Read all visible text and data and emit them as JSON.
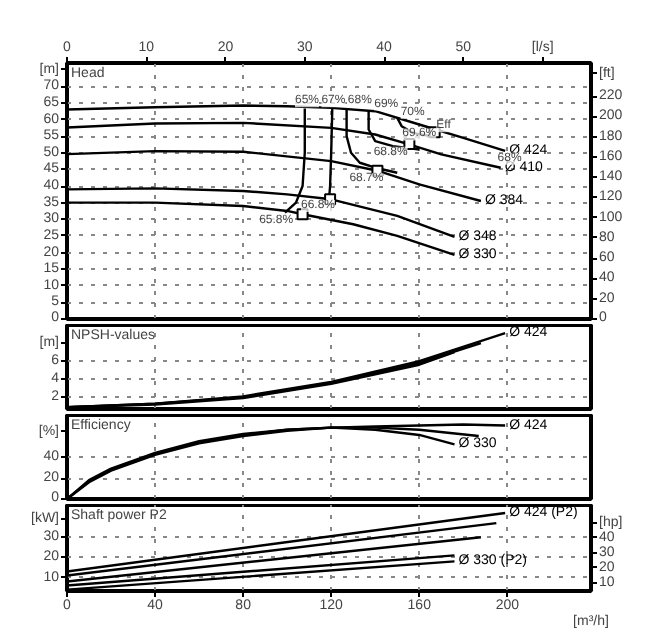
{
  "chart_data": [
    {
      "type": "line",
      "title": "Head",
      "xlim": [
        0,
        238
      ],
      "xticks": [
        0,
        40,
        80,
        120,
        160,
        200
      ],
      "x2lim": [
        0,
        66.1
      ],
      "x2ticks": [
        0,
        10,
        20,
        30,
        40,
        50,
        {
          "value": 60,
          "label": "[l/s]"
        }
      ],
      "ylim": [
        0,
        77
      ],
      "yticks": [
        0,
        5,
        10,
        15,
        20,
        25,
        30,
        35,
        40,
        45,
        50,
        55,
        60,
        65,
        70,
        {
          "value": 75,
          "label": "[m]"
        }
      ],
      "y2lim": [
        0,
        252.6
      ],
      "y2ticks": [
        0,
        20,
        40,
        60,
        80,
        100,
        120,
        140,
        160,
        180,
        200,
        220,
        {
          "value": 242,
          "label": "[ft]"
        }
      ],
      "grid": true,
      "tick_labels": "y",
      "series": [
        {
          "name": "Ø 424",
          "color": "#000000",
          "x": [
            0,
            40,
            80,
            100,
            120,
            140,
            160,
            180,
            199
          ],
          "values": [
            63,
            63.7,
            64.2,
            64,
            63.5,
            62.5,
            58.5,
            54.5,
            50.6
          ]
        },
        {
          "name": "Ø 410",
          "color": "#000000",
          "x": [
            0,
            40,
            80,
            120,
            140,
            155,
            170,
            197
          ],
          "values": [
            57.6,
            58.8,
            59,
            57.5,
            55.5,
            52.6,
            49.5,
            45.5
          ]
        },
        {
          "name": "Ø 384",
          "color": "#000000",
          "x": [
            0,
            40,
            80,
            120,
            141,
            160,
            188
          ],
          "values": [
            49.6,
            50.5,
            50.3,
            47.5,
            44.6,
            40.5,
            35.5
          ]
        },
        {
          "name": "Ø 348",
          "color": "#000000",
          "x": [
            0,
            40,
            80,
            100,
            120,
            150,
            176
          ],
          "values": [
            39,
            39.3,
            38.5,
            37.5,
            36,
            31,
            24.7
          ]
        },
        {
          "name": "Ø 330",
          "color": "#000000",
          "x": [
            0,
            40,
            80,
            100,
            107,
            130,
            150,
            176
          ],
          "values": [
            35,
            35,
            34,
            32.5,
            31.5,
            28.5,
            25,
            19.3
          ]
        },
        {
          "color": "#000000",
          "x": [
            108,
            108,
            107,
            104,
            99
          ],
          "values": [
            63.3,
            50,
            40,
            35,
            32
          ]
        },
        {
          "color": "#000000",
          "x": [
            120.5,
            120,
            119.5,
            119
          ],
          "values": [
            63.5,
            50,
            40,
            36
          ]
        },
        {
          "color": "#000000",
          "x": [
            127,
            127,
            129,
            133,
            140,
            150
          ],
          "values": [
            63.5,
            55,
            50,
            47,
            45.5,
            44
          ]
        },
        {
          "color": "#000000",
          "x": [
            137,
            137,
            140,
            148,
            160
          ],
          "values": [
            62.5,
            57,
            53.5,
            52,
            51
          ]
        },
        {
          "color": "#000000",
          "x": [
            150,
            152,
            157,
            165
          ],
          "values": [
            60.5,
            58,
            56,
            55
          ]
        },
        {
          "type": "scatter",
          "marker": "square",
          "color": "#000000",
          "x": [
            167,
            155.5,
            141,
            119.5,
            107
          ],
          "values": [
            56.2,
            52.6,
            44.6,
            36,
            31.5
          ]
        }
      ],
      "annotations": [
        {
          "text": "65%",
          "x": 109,
          "y": 65.5
        },
        {
          "text": "67%",
          "x": 121,
          "y": 65.5
        },
        {
          "text": "68%",
          "x": 133,
          "y": 65.5
        },
        {
          "text": "69%",
          "x": 145,
          "y": 64.5
        },
        {
          "text": "70%",
          "x": 157,
          "y": 62
        },
        {
          "text": "Eff",
          "x": 171,
          "y": 58
        },
        {
          "text": "69.6%",
          "x": 160,
          "y": 55.5
        },
        {
          "text": "68.8%",
          "x": 147,
          "y": 50
        },
        {
          "text": "68.7%",
          "x": 136,
          "y": 42
        },
        {
          "text": "66.8%",
          "x": 114,
          "y": 34
        },
        {
          "text": "65.8%",
          "x": 95,
          "y": 29.5
        },
        {
          "text": "68%",
          "x": 201,
          "y": 48.2
        }
      ]
    },
    {
      "type": "line",
      "title": "NPSH-values",
      "xlim": [
        0,
        238
      ],
      "xticks": [
        0,
        40,
        80,
        120,
        160,
        200
      ],
      "ylim": [
        0.7,
        10
      ],
      "yticks": [
        2,
        4,
        6,
        {
          "value": 8,
          "label": "[m]"
        }
      ],
      "grid": true,
      "tick_labels": "y",
      "series": [
        {
          "name": "Ø 424",
          "color": "#000000",
          "x": [
            0,
            40,
            80,
            120,
            160,
            199
          ],
          "values": [
            0.9,
            1.3,
            2.1,
            3.7,
            6.0,
            9.1
          ]
        },
        {
          "color": "#000000",
          "x": [
            0,
            40,
            80,
            120,
            160,
            188
          ],
          "values": [
            0.9,
            1.3,
            2.0,
            3.6,
            5.8,
            8.0
          ]
        },
        {
          "color": "#000000",
          "x": [
            0,
            40,
            80,
            120,
            160,
            176
          ],
          "values": [
            0.9,
            1.2,
            1.9,
            3.5,
            5.6,
            7.0
          ]
        }
      ]
    },
    {
      "type": "line",
      "title": "Efficiency",
      "xlim": [
        0,
        238
      ],
      "xticks": [
        0,
        40,
        80,
        120,
        160,
        200
      ],
      "ylim": [
        0,
        80
      ],
      "yticks": [
        0,
        20,
        40,
        {
          "value": 64,
          "label": "[%]"
        }
      ],
      "grid": true,
      "tick_labels": "y",
      "series": [
        {
          "name": "Ø 424",
          "color": "#000000",
          "x": [
            0,
            10,
            20,
            40,
            60,
            80,
            100,
            120,
            140,
            160,
            180,
            199
          ],
          "values": [
            0,
            16,
            27,
            42,
            53,
            60,
            65,
            68,
            69,
            70,
            71,
            70
          ]
        },
        {
          "color": "#000000",
          "x": [
            0,
            10,
            20,
            40,
            60,
            80,
            100,
            120,
            140,
            160,
            187
          ],
          "values": [
            0,
            17,
            28,
            43,
            54,
            61,
            66,
            68,
            68,
            66,
            60
          ]
        },
        {
          "name": "Ø 330",
          "color": "#000000",
          "x": [
            0,
            10,
            20,
            40,
            60,
            80,
            100,
            120,
            140,
            160,
            176
          ],
          "values": [
            0,
            18,
            29,
            44,
            55,
            62,
            66,
            68,
            66,
            61,
            52
          ]
        }
      ]
    },
    {
      "type": "line",
      "title": "Shaft power P2",
      "xlabel": "[m³/h]",
      "xlim": [
        0,
        238
      ],
      "xticks": [
        0,
        40,
        80,
        120,
        160,
        200
      ],
      "ylim": [
        3.3,
        46
      ],
      "yticks": [
        10,
        20,
        30,
        {
          "value": 39,
          "label": "[kW]"
        }
      ],
      "y2lim": [
        4.4,
        61.7
      ],
      "y2ticks": [
        10,
        20,
        30,
        40,
        {
          "value": 50,
          "label": "[hp]"
        }
      ],
      "grid": true,
      "series": [
        {
          "name": "Ø 424 (P2)",
          "color": "#000000",
          "x": [
            0,
            199
          ],
          "values": [
            13,
            42
          ]
        },
        {
          "color": "#000000",
          "x": [
            0,
            195
          ],
          "values": [
            11,
            37
          ]
        },
        {
          "color": "#000000",
          "x": [
            0,
            188
          ],
          "values": [
            8,
            30
          ]
        },
        {
          "color": "#000000",
          "x": [
            0,
            176
          ],
          "values": [
            6,
            21
          ]
        },
        {
          "name": "Ø 330 (P2)",
          "color": "#000000",
          "x": [
            0,
            176
          ],
          "values": [
            4,
            18
          ]
        }
      ]
    }
  ]
}
